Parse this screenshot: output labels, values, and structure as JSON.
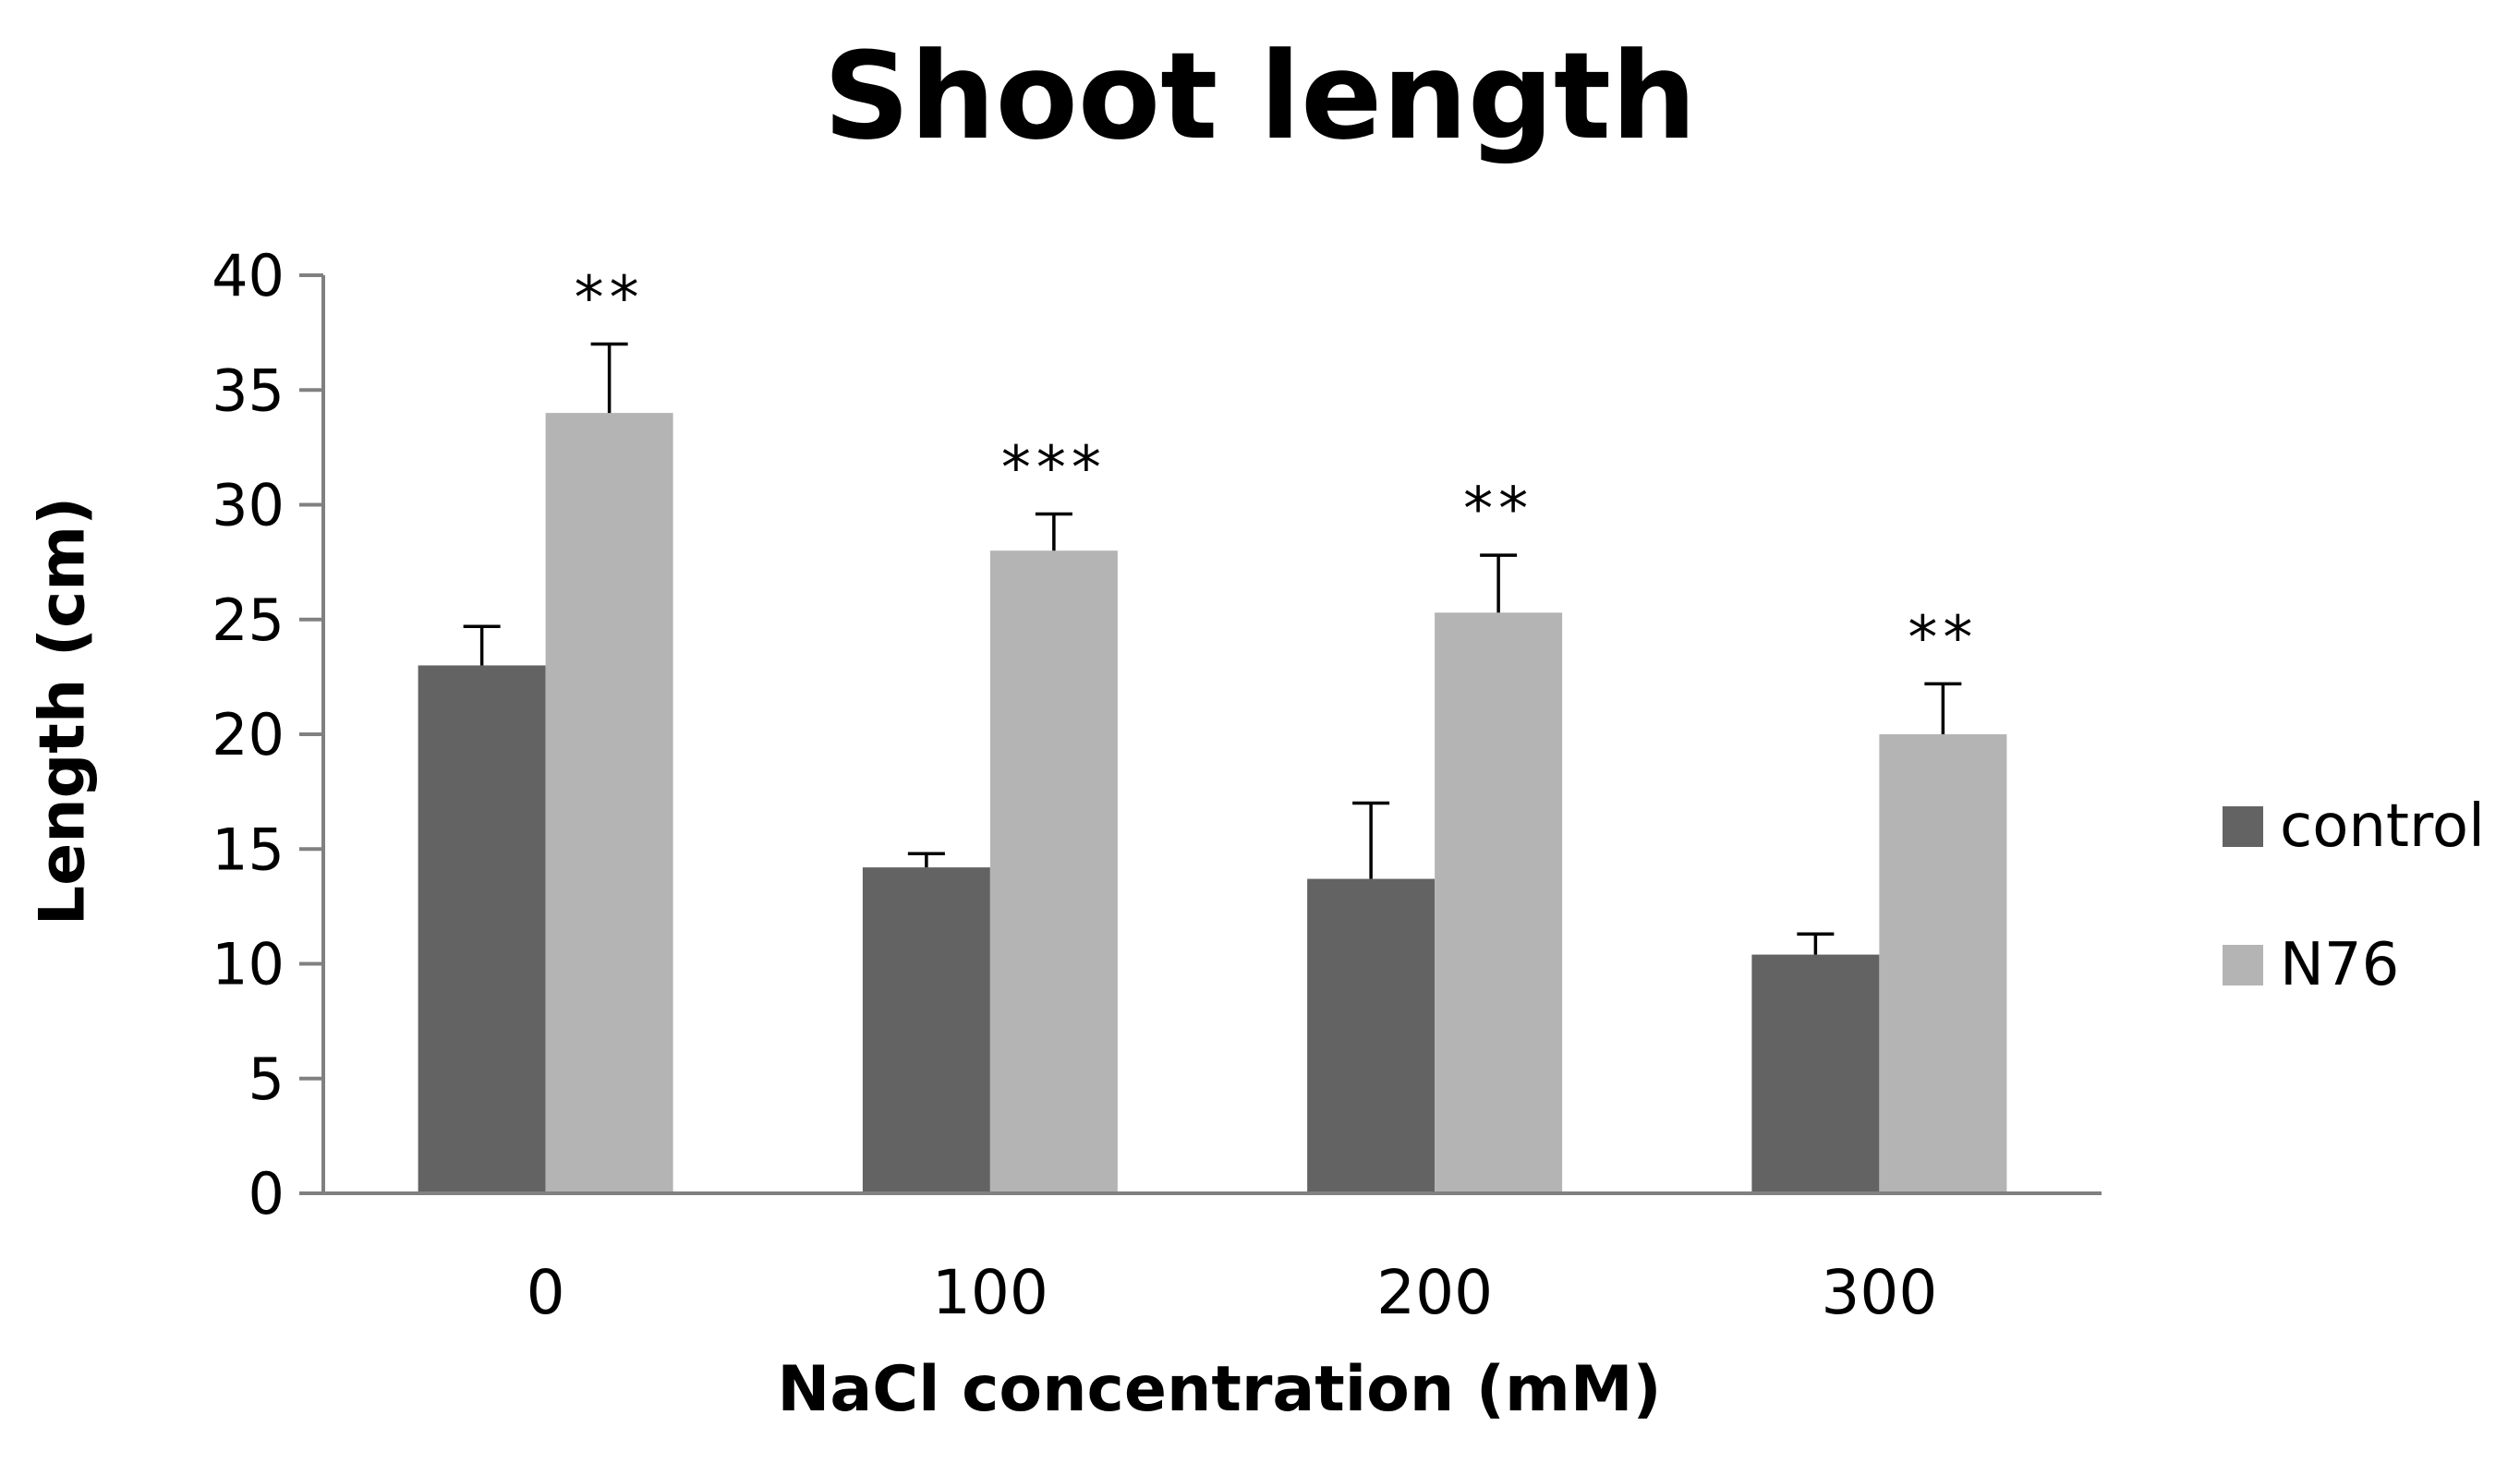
{
  "chart_data": {
    "type": "bar",
    "title": "Shoot length",
    "xlabel": "NaCl concentration (mM)",
    "ylabel": "Length (cm)",
    "categories": [
      "0",
      "100",
      "200",
      "300"
    ],
    "ylim": [
      0,
      40
    ],
    "yticks": [
      0,
      5,
      10,
      15,
      20,
      25,
      30,
      35,
      40
    ],
    "grid": false,
    "legend_position": "right",
    "series": [
      {
        "name": "control",
        "color": "#636363",
        "values": [
          23,
          14.2,
          13.7,
          10.4
        ],
        "errors": [
          1.7,
          0.6,
          3.3,
          0.9
        ],
        "annotations": [
          "",
          "",
          "",
          ""
        ]
      },
      {
        "name": "N76",
        "color": "#b4b4b4",
        "values": [
          34,
          28,
          25.3,
          20
        ],
        "errors": [
          3,
          1.6,
          2.5,
          2.2
        ],
        "annotations": [
          "**",
          "***",
          "**",
          "**"
        ]
      }
    ]
  }
}
